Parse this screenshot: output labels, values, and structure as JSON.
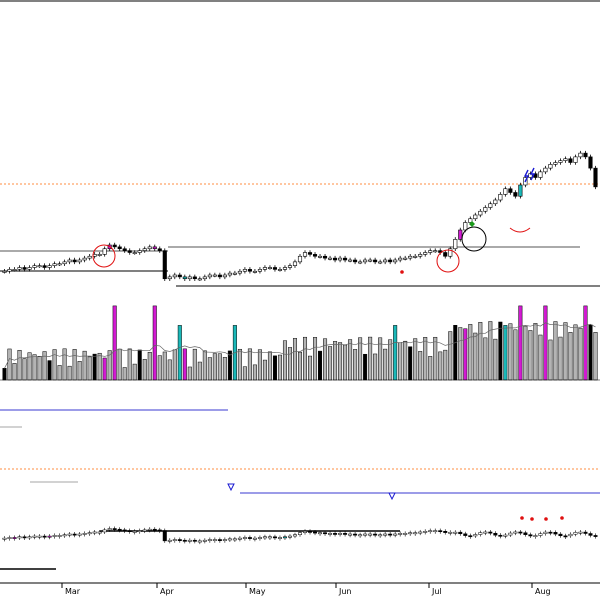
{
  "chart_data": {
    "type": "candlestick",
    "x_tick_labels": [
      "Mar",
      "Apr",
      "May",
      "Jun",
      "Jul",
      "Aug"
    ],
    "price": {
      "approx_range": "rising trend with a flat base Mar–Jun, breakout in Jul, higher highs in Aug",
      "series": [
        6.0,
        6.1,
        6.1,
        6.2,
        6.1,
        6.2,
        6.3,
        6.3,
        6.2,
        6.3,
        6.4,
        6.4,
        6.5,
        6.6,
        6.5,
        6.6,
        6.7,
        6.8,
        6.9,
        6.9,
        7.2,
        7.4,
        7.3,
        7.2,
        7.1,
        7.0,
        7.0,
        7.1,
        7.2,
        7.3,
        7.2,
        7.1,
        5.6,
        5.7,
        5.8,
        5.7,
        5.6,
        5.7,
        5.6,
        5.6,
        5.7,
        5.8,
        5.8,
        5.7,
        5.8,
        5.9,
        5.9,
        6.0,
        6.1,
        6.0,
        6.0,
        6.1,
        6.2,
        6.2,
        6.1,
        6.1,
        6.2,
        6.3,
        6.5,
        6.8,
        7.0,
        6.9,
        6.8,
        6.8,
        6.7,
        6.7,
        6.6,
        6.7,
        6.6,
        6.6,
        6.5,
        6.5,
        6.6,
        6.6,
        6.5,
        6.5,
        6.6,
        6.5,
        6.6,
        6.7,
        6.7,
        6.8,
        6.8,
        6.9,
        7.0,
        7.1,
        7.1,
        7.0,
        6.8,
        7.2,
        7.7,
        8.2,
        8.6,
        8.8,
        9.0,
        9.2,
        9.4,
        9.6,
        9.8,
        10.1,
        10.4,
        10.2,
        10.0,
        10.6,
        11.0,
        11.2,
        11.0,
        11.3,
        11.5,
        11.7,
        11.8,
        11.9,
        12.0,
        11.8,
        12.1,
        12.3,
        12.1,
        11.5,
        10.5
      ]
    },
    "volume": {
      "relative_scale": "0-1",
      "highlighted_colors": [
        "#d21ad2",
        "#1ab8b8",
        "#000000",
        "#b4b4b4"
      ]
    },
    "oscillator": {
      "note": "lower panel indicator line with markers"
    },
    "markers": {
      "diamond_green": "#1a9a1a",
      "dot_red": "#e01010",
      "lightning_blue": "#1a1ad2",
      "circle_red": "#e01010",
      "circle_black": "#000000"
    },
    "colors": {
      "up": "#ffffff",
      "down": "#000000",
      "magenta": "#d21ad2",
      "cyan": "#1ab8b8",
      "grid_dashed": "#ff8c42",
      "ref_line": "#555555",
      "blue_line": "#3a3ad2"
    },
    "grid": false,
    "legend": "none"
  }
}
